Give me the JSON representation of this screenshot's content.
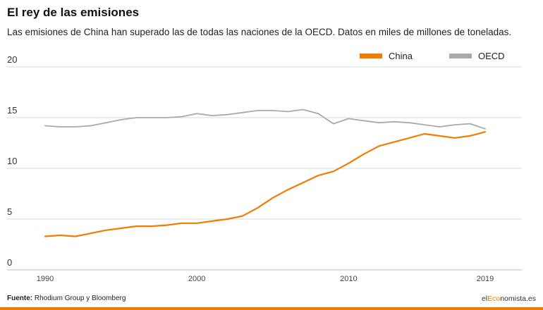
{
  "header": {
    "title": "El rey de las emisiones",
    "subtitle": "Las emisiones de China han superado las de todas las naciones de la OECD. Datos en miles de millones de toneladas."
  },
  "footer": {
    "source_label": "Fuente:",
    "source_text": "Rhodium Group y Bloomberg",
    "brand_prefix": "el",
    "brand_accent": "Eco",
    "brand_suffix": "nomista.es"
  },
  "colors": {
    "china": "#f07d00",
    "oecd": "#aaaaaa",
    "grid": "#d9d9d9",
    "accent": "#f07d00"
  },
  "chart_data": {
    "type": "line",
    "title": "",
    "xlabel": "",
    "ylabel": "",
    "ylim": [
      0,
      20
    ],
    "yticks": [
      0,
      5,
      10,
      15,
      20
    ],
    "xlim": [
      1990,
      2019
    ],
    "xticks": [
      1990,
      2000,
      2010,
      2019
    ],
    "grid": true,
    "legend": "top-right",
    "x": [
      1990,
      1991,
      1992,
      1993,
      1994,
      1995,
      1996,
      1997,
      1998,
      1999,
      2000,
      2001,
      2002,
      2003,
      2004,
      2005,
      2006,
      2007,
      2008,
      2009,
      2010,
      2011,
      2012,
      2013,
      2014,
      2015,
      2016,
      2017,
      2018,
      2019
    ],
    "series": [
      {
        "name": "China",
        "color": "#f07d00",
        "values": [
          3.3,
          3.4,
          3.3,
          3.6,
          3.9,
          4.1,
          4.3,
          4.3,
          4.4,
          4.6,
          4.6,
          4.8,
          5.0,
          5.3,
          6.1,
          7.1,
          7.9,
          8.6,
          9.3,
          9.7,
          10.5,
          11.4,
          12.2,
          12.6,
          13.0,
          13.4,
          13.2,
          13.0,
          13.2,
          13.6
        ]
      },
      {
        "name": "OECD",
        "color": "#aaaaaa",
        "values": [
          14.2,
          14.1,
          14.1,
          14.2,
          14.5,
          14.8,
          15.0,
          15.0,
          15.0,
          15.1,
          15.4,
          15.2,
          15.3,
          15.5,
          15.7,
          15.7,
          15.6,
          15.8,
          15.4,
          14.4,
          14.9,
          14.7,
          14.5,
          14.6,
          14.5,
          14.3,
          14.1,
          14.3,
          14.4,
          13.9
        ]
      }
    ]
  }
}
